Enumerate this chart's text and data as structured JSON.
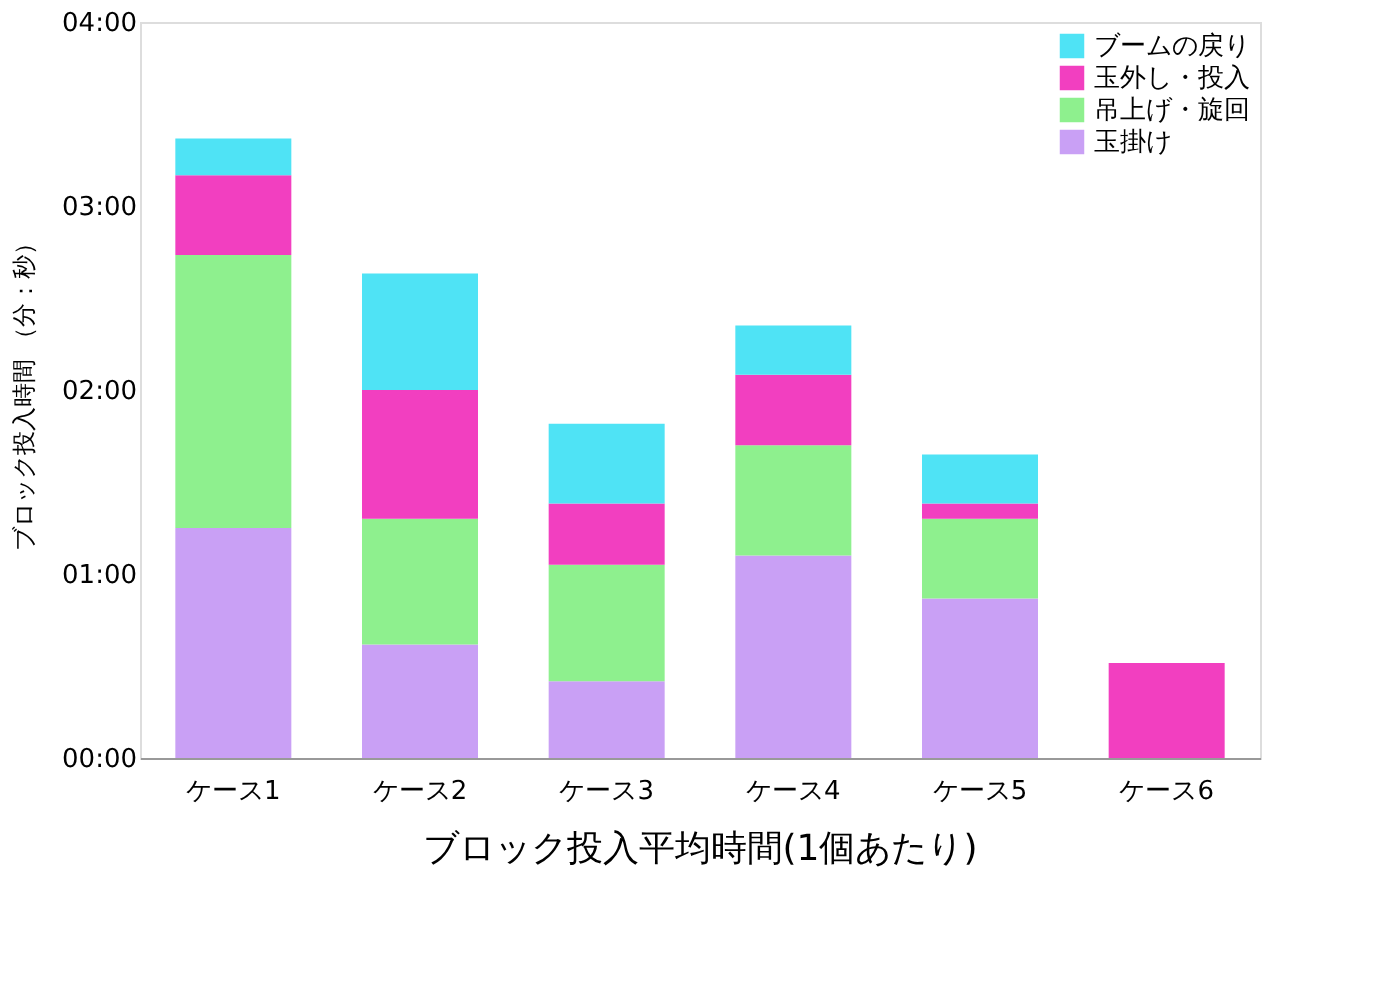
{
  "chart_data": {
    "type": "bar",
    "title": "ブロック投入平均時間(1個あたり)",
    "ylabel": "ブロック投入時間 （分：秒）",
    "stacked": true,
    "legend": "top right",
    "grid": false,
    "categories": [
      "ケース1",
      "ケース2",
      "ケース3",
      "ケース4",
      "ケース5",
      "ケース6"
    ],
    "series": [
      {
        "name": "玉掛け",
        "color": "#c9a0f5",
        "values": [
          75,
          37,
          25,
          66,
          52,
          0
        ]
      },
      {
        "name": "吊上げ・旋回",
        "color": "#8ef08e",
        "values": [
          89,
          41,
          38,
          36,
          26,
          0
        ]
      },
      {
        "name": "玉外し・投入",
        "color": "#f23fc0",
        "values": [
          26,
          42,
          20,
          23,
          5,
          31
        ]
      },
      {
        "name": "ブームの戻り",
        "color": "#4fe3f5",
        "values": [
          12,
          38,
          26,
          16,
          16,
          0
        ]
      }
    ],
    "ylim": [
      0,
      240
    ],
    "yticks": [
      {
        "value": 0,
        "label": "00:00"
      },
      {
        "value": 60,
        "label": "01:00"
      },
      {
        "value": 120,
        "label": "02:00"
      },
      {
        "value": 180,
        "label": "03:00"
      },
      {
        "value": 240,
        "label": "04:00"
      }
    ]
  }
}
